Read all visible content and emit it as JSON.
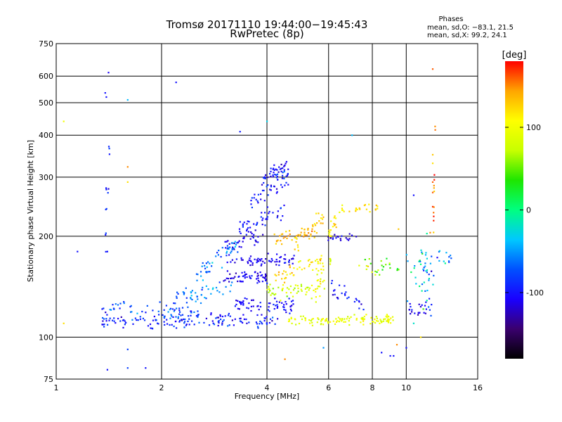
{
  "chart_data": {
    "type": "scatter",
    "title": "Tromsø 20171110 19:44:00−19:45:43",
    "subtitle": "RwPretec (8p)",
    "xlabel": "Frequency [MHz]",
    "ylabel": "Stationary phase Virtual Height [km]",
    "xscale": "log",
    "yscale": "log",
    "xlim": [
      1,
      16
    ],
    "ylim": [
      75,
      750
    ],
    "x_ticks": [
      1,
      2,
      4,
      6,
      8,
      10,
      16
    ],
    "y_ticks": [
      75,
      100,
      200,
      300,
      400,
      500,
      600,
      750
    ],
    "grid": true,
    "stats": {
      "heading": "Phases",
      "line1": "mean, sd,O: −83.1, 21.5",
      "line2": "mean, sd,X:  99.2, 24.1"
    },
    "colorbar": {
      "label": "[deg]",
      "range": [
        -180,
        180
      ],
      "ticks": [
        100,
        0,
        -100
      ],
      "colors": [
        "#000000",
        "#3a006e",
        "#1a00ff",
        "#0050ff",
        "#00c8ff",
        "#00ff80",
        "#1ee600",
        "#c8ff00",
        "#ffff00",
        "#ffa500",
        "#ff0000"
      ]
    },
    "series": [
      {
        "segments": [
          {
            "f1": 1.35,
            "f2": 4.3,
            "h1": 112,
            "h2": 112,
            "n": 150,
            "spread": 5,
            "phase": -95,
            "psd": 25
          },
          {
            "f1": 1.35,
            "f2": 2.6,
            "h1": 125,
            "h2": 118,
            "n": 60,
            "spread": 6,
            "phase": -80,
            "psd": 30
          },
          {
            "f1": 2.2,
            "f2": 3.2,
            "h1": 130,
            "h2": 142,
            "n": 45,
            "spread": 7,
            "phase": -55,
            "psd": 30
          },
          {
            "f1": 2.5,
            "f2": 3.3,
            "h1": 150,
            "h2": 190,
            "n": 50,
            "spread": 10,
            "phase": -60,
            "psd": 30
          },
          {
            "f1": 3.0,
            "f2": 4.0,
            "h1": 150,
            "h2": 150,
            "n": 55,
            "spread": 6,
            "phase": -110,
            "psd": 15
          },
          {
            "f1": 3.0,
            "f2": 4.8,
            "h1": 168,
            "h2": 170,
            "n": 65,
            "spread": 6,
            "phase": -110,
            "psd": 15
          },
          {
            "f1": 3.2,
            "f2": 4.8,
            "h1": 125,
            "h2": 125,
            "n": 65,
            "spread": 5,
            "phase": -105,
            "psd": 15
          },
          {
            "f1": 3.0,
            "f2": 3.9,
            "h1": 190,
            "h2": 195,
            "n": 30,
            "spread": 8,
            "phase": -110,
            "psd": 18
          },
          {
            "f1": 3.3,
            "f2": 4.5,
            "h1": 210,
            "h2": 240,
            "n": 45,
            "spread": 12,
            "phase": -100,
            "psd": 20
          },
          {
            "f1": 3.6,
            "f2": 4.6,
            "h1": 255,
            "h2": 305,
            "n": 50,
            "spread": 16,
            "phase": -95,
            "psd": 25
          },
          {
            "f1": 3.9,
            "f2": 4.6,
            "h1": 300,
            "h2": 330,
            "n": 35,
            "spread": 12,
            "phase": -105,
            "psd": 20
          },
          {
            "f1": 4.0,
            "f2": 5.3,
            "h1": 135,
            "h2": 140,
            "n": 45,
            "spread": 7,
            "phase": 80,
            "psd": 25
          },
          {
            "f1": 4.2,
            "f2": 5.8,
            "h1": 150,
            "h2": 170,
            "n": 45,
            "spread": 8,
            "phase": 120,
            "psd": 25
          },
          {
            "f1": 4.2,
            "f2": 5.6,
            "h1": 195,
            "h2": 205,
            "n": 35,
            "spread": 7,
            "phase": 140,
            "psd": 20
          },
          {
            "f1": 4.8,
            "f2": 5.8,
            "h1": 190,
            "h2": 230,
            "n": 30,
            "spread": 12,
            "phase": 130,
            "psd": 20
          },
          {
            "f1": 4.6,
            "f2": 9.3,
            "h1": 112,
            "h2": 113,
            "n": 110,
            "spread": 3,
            "phase": 95,
            "psd": 20
          },
          {
            "f1": 5.3,
            "f2": 6.2,
            "h1": 130,
            "h2": 175,
            "n": 30,
            "spread": 12,
            "phase": 100,
            "psd": 25
          },
          {
            "f1": 6.0,
            "f2": 6.6,
            "h1": 205,
            "h2": 240,
            "n": 20,
            "spread": 12,
            "phase": 110,
            "psd": 20
          },
          {
            "f1": 5.8,
            "f2": 7.2,
            "h1": 198,
            "h2": 200,
            "n": 20,
            "spread": 4,
            "phase": -110,
            "psd": 15
          },
          {
            "f1": 6.5,
            "f2": 8.3,
            "h1": 240,
            "h2": 245,
            "n": 20,
            "spread": 6,
            "phase": 120,
            "psd": 20
          },
          {
            "f1": 6.0,
            "f2": 7.6,
            "h1": 140,
            "h2": 125,
            "n": 25,
            "spread": 7,
            "phase": -95,
            "psd": 20
          },
          {
            "f1": 7.2,
            "f2": 9.6,
            "h1": 160,
            "h2": 160,
            "n": 25,
            "spread": 10,
            "phase": 60,
            "psd": 50
          },
          {
            "f1": 10.0,
            "f2": 12.0,
            "h1": 150,
            "h2": 150,
            "n": 30,
            "spread": 35,
            "phase": -30,
            "psd": 60
          },
          {
            "f1": 10.5,
            "f2": 13.5,
            "h1": 165,
            "h2": 170,
            "n": 25,
            "spread": 12,
            "phase": -60,
            "psd": 50
          },
          {
            "f1": 10.2,
            "f2": 11.8,
            "h1": 120,
            "h2": 122,
            "n": 25,
            "spread": 6,
            "phase": -100,
            "psd": 30
          },
          {
            "f1": 1.38,
            "f2": 1.42,
            "h1": 190,
            "h2": 360,
            "n": 12,
            "spread": 40,
            "phase": -95,
            "psd": 30
          },
          {
            "f1": 11.9,
            "f2": 12.1,
            "h1": 105,
            "h2": 430,
            "n": 12,
            "spread": 30,
            "phase": 150,
            "psd": 30
          }
        ],
        "points": [
          [
            1.41,
            615,
            -110
          ],
          [
            1.38,
            535,
            -100
          ],
          [
            1.39,
            520,
            -100
          ],
          [
            2.2,
            575,
            -100
          ],
          [
            1.6,
            510,
            -40
          ],
          [
            1.05,
            440,
            100
          ],
          [
            3.35,
            410,
            -95
          ],
          [
            4.0,
            440,
            -30
          ],
          [
            7.0,
            400,
            -40
          ],
          [
            1.6,
            322,
            150
          ],
          [
            1.6,
            290,
            120
          ],
          [
            1.4,
            180,
            -100
          ],
          [
            1.05,
            110,
            120
          ],
          [
            1.6,
            92,
            -80
          ],
          [
            1.6,
            81,
            -80
          ],
          [
            1.4,
            80,
            -100
          ],
          [
            1.8,
            81,
            -100
          ],
          [
            5.8,
            93,
            -50
          ],
          [
            8.5,
            90,
            -100
          ],
          [
            4.5,
            86,
            150
          ],
          [
            9.0,
            88,
            -100
          ],
          [
            9.2,
            88,
            -100
          ],
          [
            11.9,
            630,
            160
          ],
          [
            11.9,
            350,
            130
          ],
          [
            11.9,
            330,
            120
          ],
          [
            11.9,
            290,
            160
          ],
          [
            11.9,
            270,
            160
          ],
          [
            11.9,
            245,
            170
          ],
          [
            11.7,
            205,
            150
          ],
          [
            10.5,
            265,
            -100
          ],
          [
            9.5,
            210,
            130
          ],
          [
            1.15,
            180,
            -100
          ],
          [
            11.0,
            100,
            120
          ],
          [
            10.5,
            110,
            -20
          ],
          [
            9.4,
            95,
            150
          ],
          [
            10.0,
            93,
            -100
          ]
        ]
      }
    ]
  }
}
